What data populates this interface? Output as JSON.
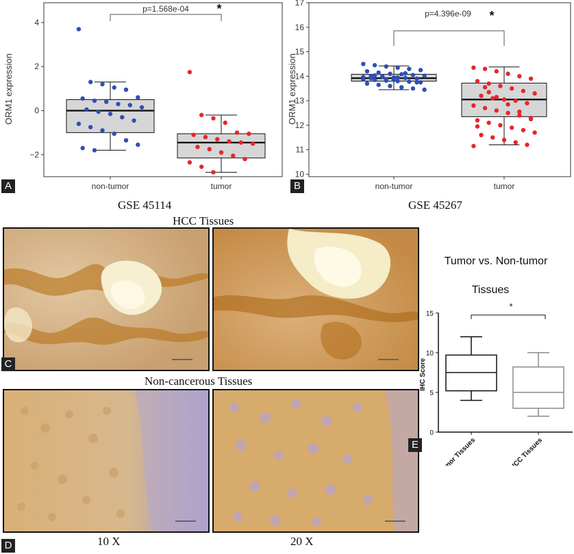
{
  "panels": {
    "A": "A",
    "B": "B",
    "C": "C",
    "D": "D",
    "E": "E"
  },
  "captions": {
    "gse_a": "GSE 45114",
    "gse_b": "GSE 45267",
    "hcc_tissues": "HCC Tissues",
    "non_cancerous_tissues": "Non-cancerous Tissues",
    "mag_10x": "10 X",
    "mag_20x": "20 X"
  },
  "colors": {
    "non_tumor": "#2f4fb5",
    "tumor": "#e8252a",
    "box_fill": "#d6d6d6"
  },
  "chart_data": [
    {
      "type": "box",
      "panel": "A",
      "ylabel": "ORM1 expression",
      "xlabel": "GSE 45114",
      "categories": [
        "non-tumor",
        "tumor"
      ],
      "ylim": [
        -3.0,
        4.9
      ],
      "yticks": [
        -2,
        0,
        2,
        4
      ],
      "pvalue_label": "p=1.568e-04",
      "significance": "*",
      "boxes": [
        {
          "category": "non-tumor",
          "whisker_low": -1.8,
          "q1": -1.0,
          "median": 0.0,
          "q3": 0.5,
          "whisker_high": 1.3
        },
        {
          "category": "tumor",
          "whisker_low": -2.8,
          "q1": -2.15,
          "median": -1.45,
          "q3": -1.05,
          "whisker_high": -0.2
        }
      ],
      "points": [
        {
          "category": "non-tumor",
          "values": [
            3.7,
            1.3,
            1.2,
            1.05,
            0.95,
            0.6,
            0.55,
            0.45,
            0.4,
            0.3,
            0.25,
            0.15,
            0.05,
            -0.05,
            -0.15,
            -0.3,
            -0.45,
            -0.6,
            -0.75,
            -0.9,
            -1.05,
            -1.35,
            -1.55,
            -1.7,
            -1.8
          ]
        },
        {
          "category": "tumor",
          "values": [
            1.75,
            -0.2,
            -0.35,
            -0.55,
            -1.0,
            -1.05,
            -1.1,
            -1.2,
            -1.3,
            -1.4,
            -1.45,
            -1.5,
            -1.65,
            -1.75,
            -1.9,
            -2.05,
            -2.2,
            -2.35,
            -2.55,
            -2.8
          ]
        }
      ]
    },
    {
      "type": "box",
      "panel": "B",
      "ylabel": "ORM1 expression",
      "xlabel": "GSE 45267",
      "categories": [
        "non-tumor",
        "tumor"
      ],
      "ylim": [
        9.9,
        17.0
      ],
      "yticks": [
        10,
        11,
        12,
        13,
        14,
        15,
        16,
        17
      ],
      "pvalue_label": "p=4.396e-09",
      "significance": "*",
      "boxes": [
        {
          "category": "non-tumor",
          "whisker_low": 13.45,
          "q1": 13.8,
          "median": 13.92,
          "q3": 14.08,
          "whisker_high": 14.42
        },
        {
          "category": "tumor",
          "whisker_low": 11.2,
          "q1": 12.35,
          "median": 13.05,
          "q3": 13.72,
          "whisker_high": 14.38
        }
      ],
      "points": [
        {
          "category": "non-tumor",
          "values": [
            14.5,
            14.45,
            14.4,
            14.35,
            14.3,
            14.25,
            14.2,
            14.15,
            14.1,
            14.08,
            14.05,
            14.02,
            14.0,
            13.98,
            13.95,
            13.93,
            13.9,
            13.88,
            13.85,
            13.82,
            13.8,
            13.78,
            13.75,
            13.7,
            13.65,
            13.6,
            13.55,
            13.5,
            13.45,
            13.92,
            14.0,
            13.85,
            14.12,
            13.75,
            13.97,
            14.03,
            13.88,
            13.95
          ]
        },
        {
          "category": "tumor",
          "values": [
            14.35,
            14.3,
            14.2,
            14.1,
            14.0,
            13.9,
            13.8,
            13.7,
            13.6,
            13.5,
            13.4,
            13.3,
            13.2,
            13.1,
            13.05,
            13.0,
            12.9,
            12.8,
            12.7,
            12.6,
            12.5,
            12.4,
            12.3,
            12.2,
            12.1,
            12.0,
            11.9,
            11.8,
            11.7,
            11.6,
            11.5,
            11.4,
            11.3,
            11.2,
            11.15,
            13.55,
            13.15,
            12.85,
            12.55,
            12.25,
            11.95,
            13.35
          ]
        }
      ]
    },
    {
      "type": "box",
      "panel": "E",
      "title": "Tumor vs. Non-tumor Tissues",
      "title_line1": "Tumor vs. Non-tumor",
      "title_line2": "Tissues",
      "ylabel": "IHC Score",
      "categories": [
        "Non-tumor Tissues",
        "HCC Tissues"
      ],
      "ylim": [
        0,
        15
      ],
      "yticks": [
        0,
        5,
        10,
        15
      ],
      "significance": "*",
      "boxes": [
        {
          "category": "Non-tumor Tissues",
          "whisker_low": 4.0,
          "q1": 5.2,
          "median": 7.5,
          "q3": 9.7,
          "whisker_high": 12.0,
          "color": "#111111"
        },
        {
          "category": "HCC Tissues",
          "whisker_low": 2.0,
          "q1": 3.0,
          "median": 5.0,
          "q3": 8.2,
          "whisker_high": 10.0,
          "color": "#8a8a8a"
        }
      ]
    }
  ]
}
